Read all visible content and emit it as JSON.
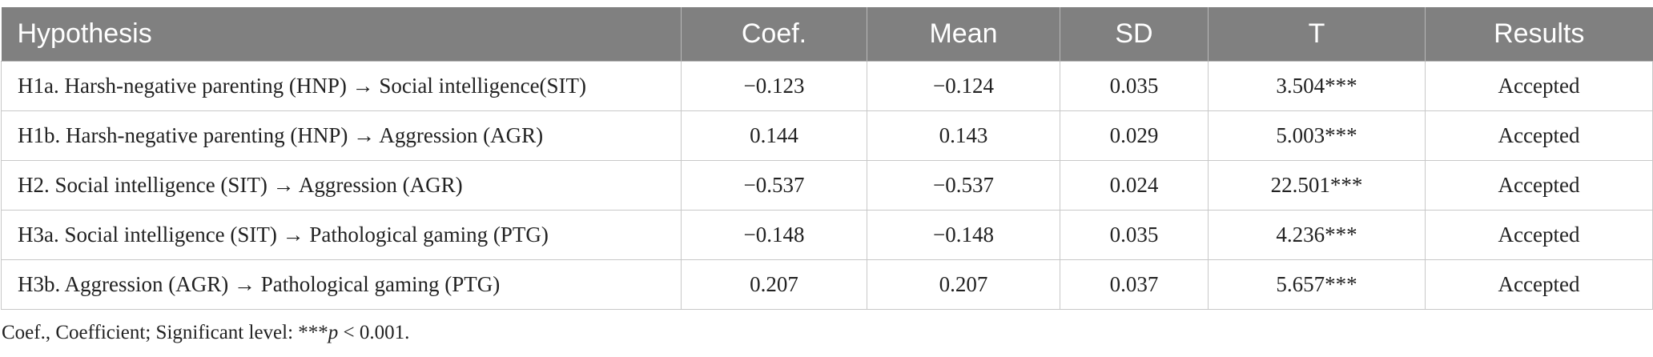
{
  "table": {
    "headers": [
      "Hypothesis",
      "Coef.",
      "Mean",
      "SD",
      "T",
      "Results"
    ],
    "rows": [
      [
        "H1a. Harsh-negative parenting (HNP) → Social intelligence(SIT)",
        "−0.123",
        "−0.124",
        "0.035",
        "3.504***",
        "Accepted"
      ],
      [
        "H1b. Harsh-negative parenting (HNP) → Aggression (AGR)",
        "0.144",
        "0.143",
        "0.029",
        "5.003***",
        "Accepted"
      ],
      [
        "H2. Social intelligence (SIT) → Aggression (AGR)",
        "−0.537",
        "−0.537",
        "0.024",
        "22.501***",
        "Accepted"
      ],
      [
        "H3a. Social intelligence (SIT) → Pathological gaming (PTG)",
        "−0.148",
        "−0.148",
        "0.035",
        "4.236***",
        "Accepted"
      ],
      [
        "H3b. Aggression (AGR) → Pathological gaming (PTG)",
        "0.207",
        "0.207",
        "0.037",
        "5.657***",
        "Accepted"
      ]
    ]
  },
  "footnote": {
    "prefix": "Coef., Coefficient; Significant level: ***",
    "italic": "p",
    "suffix": " < 0.001."
  },
  "colors": {
    "header_bg": "#808080",
    "header_text": "#ffffff",
    "border": "#c8c8c8"
  }
}
